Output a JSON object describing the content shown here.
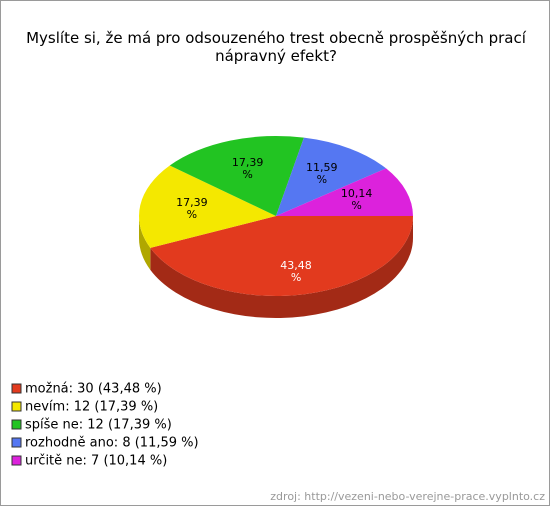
{
  "chart_data": {
    "type": "pie",
    "title": "Myslíte si, že má pro odsouzeného trest obecně prospěšných prací nápravný efekt?",
    "categories": [
      "možná",
      "nevím",
      "spíše ne",
      "rozhodně ano",
      "určitě ne"
    ],
    "values": [
      43.48,
      17.39,
      17.39,
      11.59,
      10.14
    ],
    "value_labels": [
      "43,48 %",
      "17,39 %",
      "17,39 %",
      "11,59 %",
      "10,14 %"
    ],
    "colors": [
      "#e23a1e",
      "#f4e800",
      "#22c422",
      "#5577f2",
      "#dc22dc"
    ],
    "legend": [
      "možná: 30 (43,48 %)",
      "nevím: 12 (17,39 %)",
      "spíše ne: 12 (17,39 %)",
      "rozhodně ano: 8 (11,59 %)",
      "určitě ne: 7 (10,14 %)"
    ],
    "source": "zdroj: http://vezeni-nebo-verejne-prace.vyplnto.cz"
  }
}
